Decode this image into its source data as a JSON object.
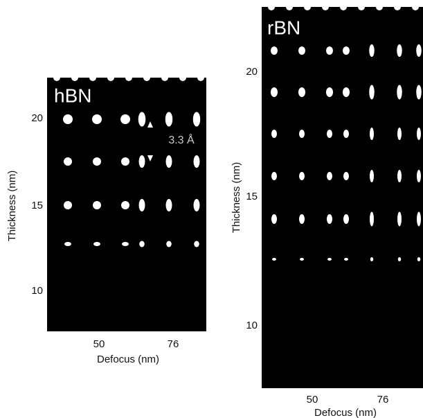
{
  "panels": [
    {
      "label": "hBN",
      "y_axis": {
        "title": "Thickness (nm)",
        "ticks": [
          20,
          15,
          10
        ]
      },
      "x_axis": {
        "title": "Defocus (nm)",
        "ticks": [
          50,
          76
        ]
      },
      "annotation": "3.3 Å"
    },
    {
      "label": "rBN",
      "y_axis": {
        "title": "Thickness (nm)",
        "ticks": [
          20,
          15,
          10
        ]
      },
      "x_axis": {
        "title": "Defocus (nm)",
        "ticks": [
          50,
          76
        ]
      }
    }
  ]
}
